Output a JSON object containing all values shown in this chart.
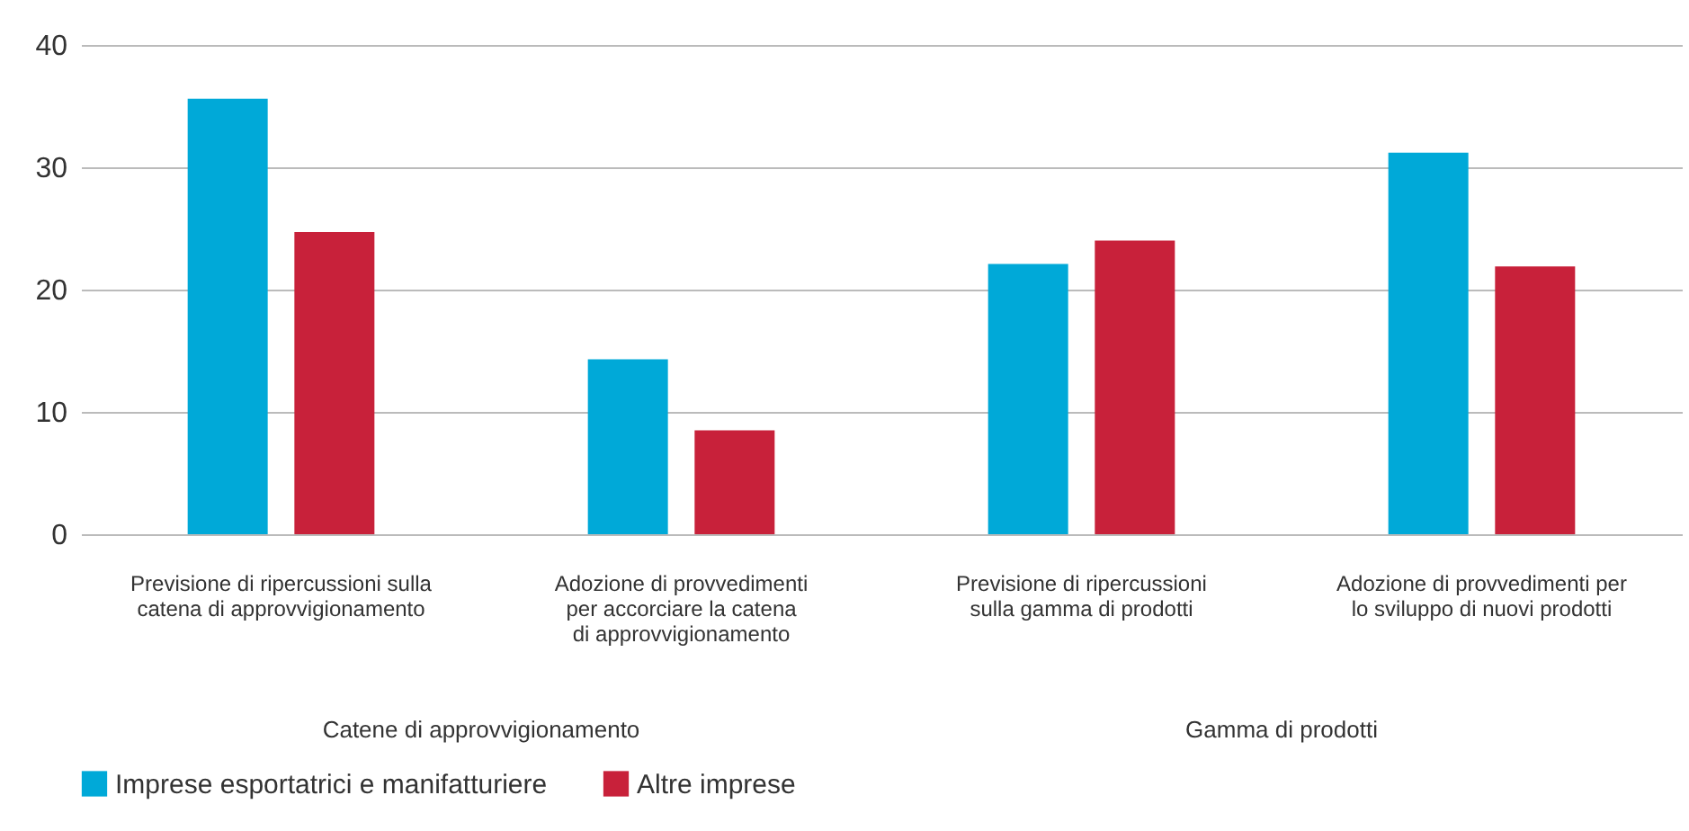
{
  "chart_data": {
    "type": "bar",
    "categories": [
      "Previsione di ripercussioni sulla\ncatena di approvvigionamento",
      "Adozione di provvedimenti\nper accorciare la catena\ndi approvvigionamento",
      "Previsione di ripercussioni\nsulla gamma di prodotti",
      "Adozione di provvedimenti per\nlo sviluppo di nuovi prodotti"
    ],
    "series": [
      {
        "name": "Imprese esportatrici e manifatturiere",
        "color": "#00a9d8",
        "values": [
          35.6,
          14.3,
          22.1,
          31.2
        ]
      },
      {
        "name": "Altre imprese",
        "color": "#c8213a",
        "values": [
          24.7,
          8.5,
          24.0,
          21.9
        ]
      }
    ],
    "ylim": [
      0,
      40
    ],
    "yticks": [
      0,
      10,
      20,
      30,
      40
    ],
    "grid": "y",
    "legend": "bottom",
    "annotations": [
      "Catene di approvvigionamento",
      "Gamma di prodotti"
    ]
  }
}
